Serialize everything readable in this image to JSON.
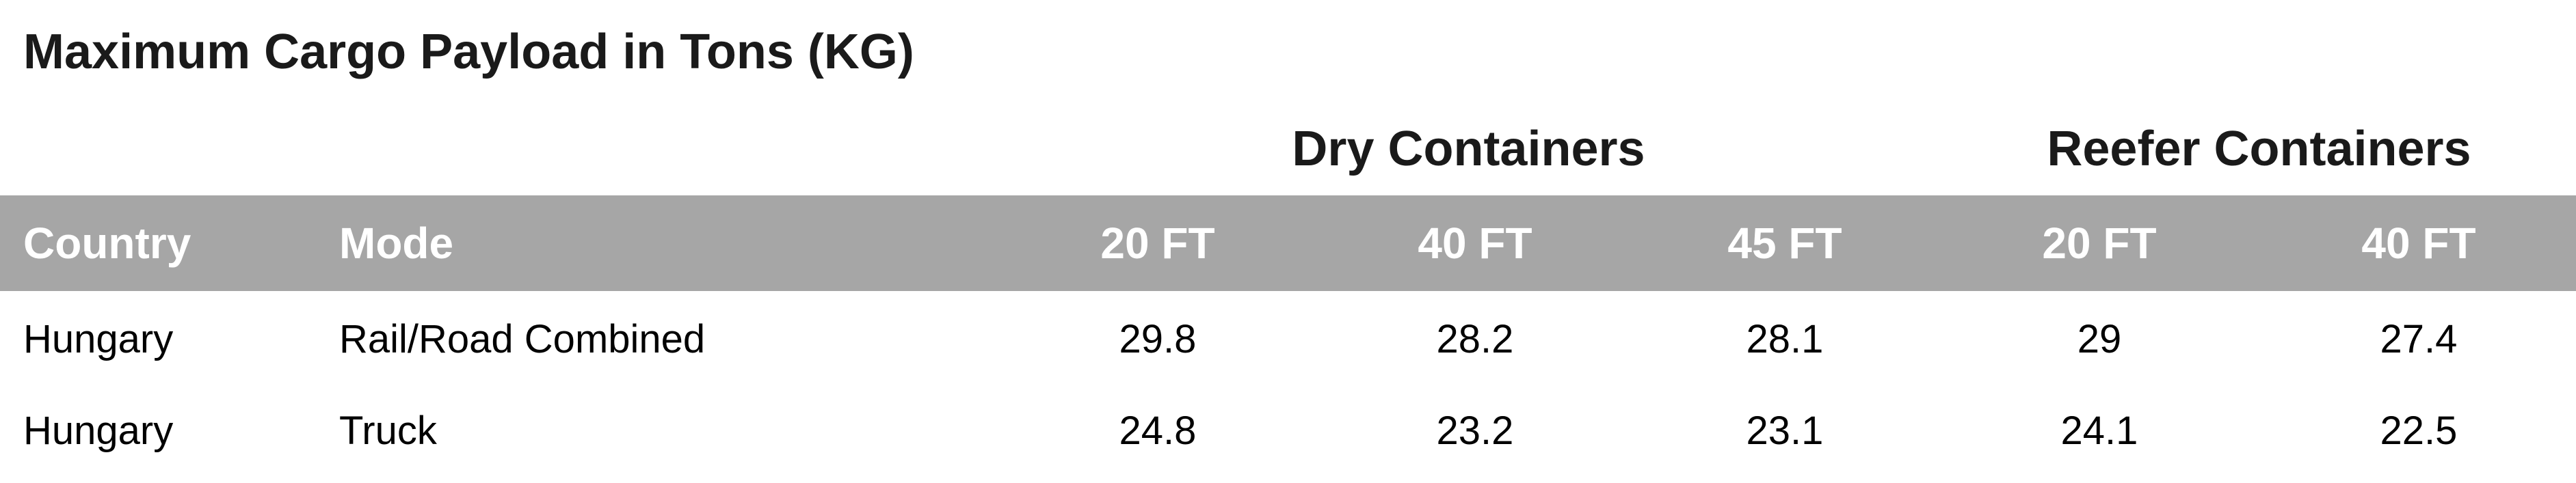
{
  "title": "Maximum Cargo Payload in Tons (KG)",
  "groups": {
    "dry": "Dry Containers",
    "reefer": "Reefer Containers"
  },
  "headers": [
    "Country",
    "Mode",
    "20 FT",
    "40 FT",
    "45 FT",
    "20 FT",
    "40 FT"
  ],
  "rows": [
    [
      "Hungary",
      "Rail/Road Combined",
      "29.8",
      "28.2",
      "28.1",
      "29",
      "27.4"
    ],
    [
      "Hungary",
      "Truck",
      "24.8",
      "23.2",
      "23.1",
      "24.1",
      "22.5"
    ]
  ],
  "colors": {
    "header_background": "#a6a6a6",
    "header_text": "#ffffff"
  }
}
